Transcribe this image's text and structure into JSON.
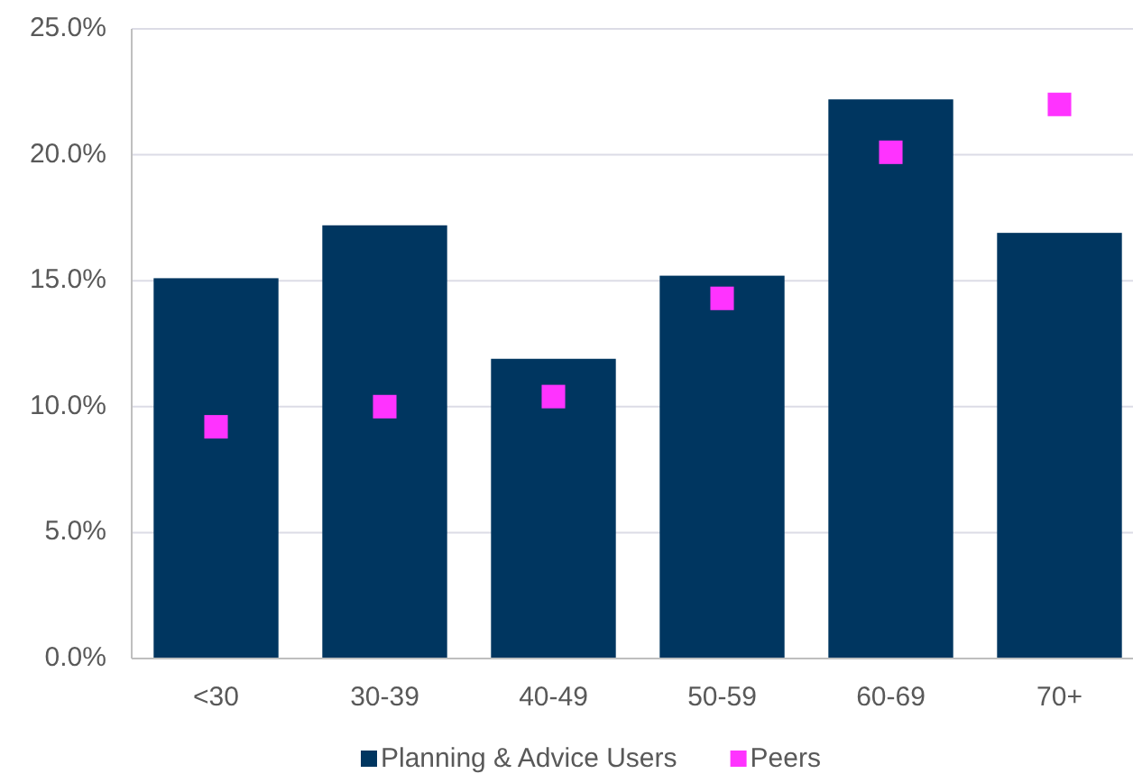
{
  "chart_data": {
    "type": "bar",
    "categories": [
      "<30",
      "30-39",
      "40-49",
      "50-59",
      "60-69",
      "70+"
    ],
    "series": [
      {
        "name": "Planning & Advice Users",
        "color": "#003660",
        "values": [
          15.1,
          17.2,
          11.9,
          15.2,
          22.2,
          16.9
        ]
      },
      {
        "name": "Peers",
        "type": "scatter",
        "color": "#ff33ff",
        "x": [
          "<30",
          "30-39",
          "40-49",
          "50-59",
          "60-69",
          "70+"
        ],
        "values": [
          9.2,
          10.0,
          10.4,
          14.3,
          20.1,
          22.0
        ]
      }
    ],
    "ylim": [
      0,
      25
    ],
    "yticks": [
      {
        "value": 0,
        "label": "0.0%"
      },
      {
        "value": 5,
        "label": "5.0%"
      },
      {
        "value": 10,
        "label": "10.0%"
      },
      {
        "value": 15,
        "label": "15.0%"
      },
      {
        "value": 20,
        "label": "20.0%"
      },
      {
        "value": 25,
        "label": "25.0%"
      }
    ],
    "grid": "y",
    "legend": "bottom",
    "marker": "square"
  }
}
